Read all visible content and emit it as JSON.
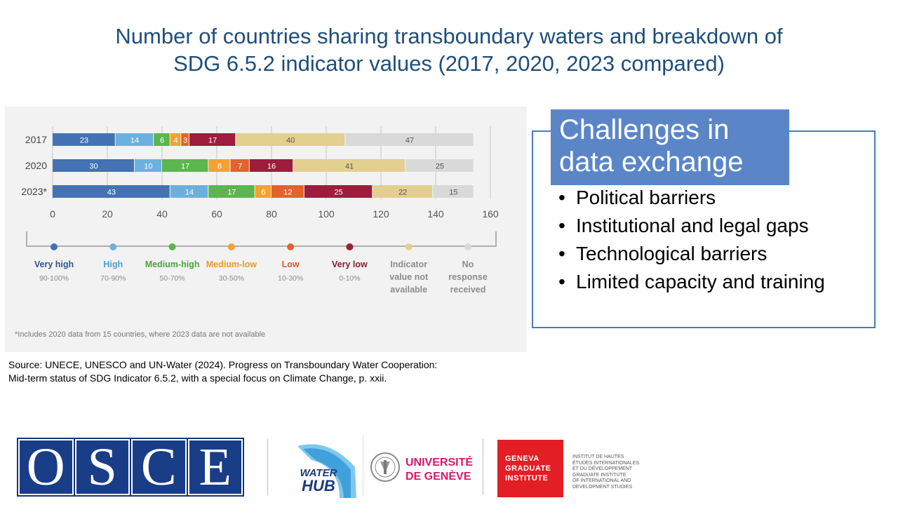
{
  "title": {
    "line1": "Number of countries sharing transboundary waters and breakdown of",
    "line2": "SDG 6.5.2 indicator values (2017, 2020, 2023 compared)"
  },
  "chart_data": {
    "type": "bar",
    "orientation": "horizontal",
    "stacked": true,
    "categories": [
      "2017",
      "2020",
      "2023*"
    ],
    "series": [
      {
        "name": "Very high",
        "range": "90-100%",
        "color": "#4472b4",
        "label_color": "#2f5496",
        "values": [
          23,
          30,
          43
        ]
      },
      {
        "name": "High",
        "range": "70-90%",
        "color": "#6cb1de",
        "label_color": "#4a9fd6",
        "values": [
          14,
          10,
          14
        ]
      },
      {
        "name": "Medium-high",
        "range": "50-70%",
        "color": "#5cb54e",
        "label_color": "#4aa33e",
        "values": [
          6,
          17,
          17
        ]
      },
      {
        "name": "Medium-low",
        "range": "30-50%",
        "color": "#f4a234",
        "label_color": "#f09a22",
        "values": [
          4,
          8,
          6
        ]
      },
      {
        "name": "Low",
        "range": "10-30%",
        "color": "#e2632d",
        "label_color": "#e05a2a",
        "values": [
          3,
          7,
          12
        ]
      },
      {
        "name": "Very low",
        "range": "0-10%",
        "color": "#9e1c3c",
        "label_color": "#8c1a32",
        "values": [
          17,
          16,
          25
        ]
      },
      {
        "name": "Indicator value not available",
        "name_lines": [
          "Indicator",
          "value not",
          "available"
        ],
        "range": "",
        "color": "#e3cf8f",
        "label_color": "#8c8c8c",
        "values": [
          40,
          41,
          22
        ]
      },
      {
        "name": "No response received",
        "name_lines": [
          "No",
          "response",
          "received"
        ],
        "range": "",
        "color": "#d9d9d9",
        "label_color": "#8c8c8c",
        "values": [
          47,
          25,
          15
        ]
      }
    ],
    "xlim": [
      0,
      160
    ],
    "xticks": [
      "0",
      "20",
      "40",
      "60",
      "80",
      "100",
      "120",
      "140",
      "160"
    ],
    "grid": "vertical",
    "legend_position": "bottom",
    "footnote": "*Includes 2020 data from 15 countries, where 2023 data are not available"
  },
  "source": {
    "line1": "Source: UNECE, UNESCO and UN-Water (2024). Progress on Transboundary Water Cooperation:",
    "line2": "Mid-term status of SDG Indicator 6.5.2, with a special focus on Climate Change, p. xxii."
  },
  "challenges": {
    "heading_line1": "Challenges in",
    "heading_line2": "data exchange",
    "items": [
      "Political barriers",
      "Institutional and legal gaps",
      "Technological barriers",
      "Limited capacity and training"
    ]
  },
  "logos": {
    "osce_letters": [
      "O",
      "S",
      "C",
      "E"
    ],
    "water_hub": {
      "line1": "WATER",
      "line2": "HUB"
    },
    "unige": {
      "line1": "UNIVERSITÉ",
      "line2": "DE GENÈVE"
    },
    "ggi": {
      "line1": "GENEVA",
      "line2": "GRADUATE",
      "line3": "INSTITUTE"
    },
    "ggi_small": [
      "INSTITUT DE HAUTES",
      "ÉTUDES INTERNATIONALES",
      "ET DU DÉVELOPPEMENT",
      "GRADUATE INSTITUTE",
      "OF INTERNATIONAL AND",
      "DEVELOPMENT STUDIES"
    ]
  }
}
